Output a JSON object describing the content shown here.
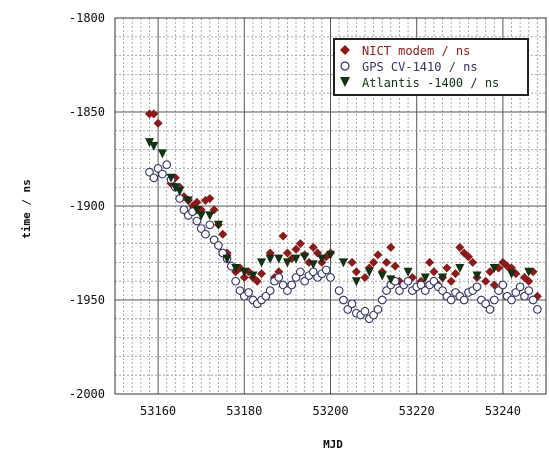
{
  "chart_data": {
    "type": "scatter",
    "xlabel": "MJD",
    "ylabel": "time / ns",
    "xlim": [
      53150,
      53250
    ],
    "ylim": [
      -2000,
      -1800
    ],
    "x_ticks": [
      "53160",
      "53180",
      "53200",
      "53220",
      "53240"
    ],
    "y_ticks": [
      "-1800",
      "-1850",
      "-1900",
      "-1950",
      "-2000"
    ],
    "grid": true,
    "legend_position": "top-right",
    "series": [
      {
        "name": "NICT modem / ns",
        "color": "#8b1a1a",
        "marker": "diamond",
        "points": [
          [
            53158,
            -1851
          ],
          [
            53159,
            -1851
          ],
          [
            53160,
            -1856
          ],
          [
            53163,
            -1888
          ],
          [
            53164,
            -1885
          ],
          [
            53165,
            -1890
          ],
          [
            53166,
            -1895
          ],
          [
            53167,
            -1897
          ],
          [
            53168,
            -1900
          ],
          [
            53169,
            -1898
          ],
          [
            53170,
            -1902
          ],
          [
            53171,
            -1897
          ],
          [
            53172,
            -1896
          ],
          [
            53173,
            -1902
          ],
          [
            53174,
            -1910
          ],
          [
            53175,
            -1915
          ],
          [
            53176,
            -1925
          ],
          [
            53177,
            -1932
          ],
          [
            53178,
            -1935
          ],
          [
            53179,
            -1933
          ],
          [
            53180,
            -1938
          ],
          [
            53181,
            -1935
          ],
          [
            53182,
            -1938
          ],
          [
            53183,
            -1940
          ],
          [
            53184,
            -1936
          ],
          [
            53186,
            -1925
          ],
          [
            53187,
            -1938
          ],
          [
            53188,
            -1935
          ],
          [
            53189,
            -1916
          ],
          [
            53190,
            -1925
          ],
          [
            53191,
            -1928
          ],
          [
            53192,
            -1923
          ],
          [
            53193,
            -1920
          ],
          [
            53194,
            -1926
          ],
          [
            53195,
            -1930
          ],
          [
            53196,
            -1922
          ],
          [
            53197,
            -1925
          ],
          [
            53198,
            -1930
          ],
          [
            53199,
            -1927
          ],
          [
            53200,
            -1925
          ],
          [
            53205,
            -1930
          ],
          [
            53206,
            -1935
          ],
          [
            53208,
            -1938
          ],
          [
            53209,
            -1933
          ],
          [
            53210,
            -1930
          ],
          [
            53211,
            -1926
          ],
          [
            53212,
            -1935
          ],
          [
            53213,
            -1930
          ],
          [
            53214,
            -1922
          ],
          [
            53215,
            -1932
          ],
          [
            53216,
            -1940
          ],
          [
            53219,
            -1938
          ],
          [
            53221,
            -1940
          ],
          [
            53223,
            -1930
          ],
          [
            53224,
            -1935
          ],
          [
            53225,
            -1942
          ],
          [
            53226,
            -1938
          ],
          [
            53227,
            -1933
          ],
          [
            53228,
            -1940
          ],
          [
            53229,
            -1936
          ],
          [
            53230,
            -1922
          ],
          [
            53231,
            -1925
          ],
          [
            53232,
            -1927
          ],
          [
            53233,
            -1930
          ],
          [
            53234,
            -1938
          ],
          [
            53236,
            -1940
          ],
          [
            53237,
            -1935
          ],
          [
            53238,
            -1942
          ],
          [
            53239,
            -1933
          ],
          [
            53240,
            -1930
          ],
          [
            53241,
            -1932
          ],
          [
            53242,
            -1933
          ],
          [
            53243,
            -1936
          ],
          [
            53245,
            -1938
          ],
          [
            53246,
            -1940
          ],
          [
            53247,
            -1935
          ],
          [
            53248,
            -1948
          ]
        ]
      },
      {
        "name": "GPS CV-1410 / ns",
        "color": "#333366",
        "marker": "circle",
        "points": [
          [
            53158,
            -1882
          ],
          [
            53159,
            -1885
          ],
          [
            53160,
            -1880
          ],
          [
            53161,
            -1883
          ],
          [
            53162,
            -1878
          ],
          [
            53163,
            -1886
          ],
          [
            53164,
            -1890
          ],
          [
            53165,
            -1896
          ],
          [
            53166,
            -1902
          ],
          [
            53167,
            -1905
          ],
          [
            53168,
            -1903
          ],
          [
            53169,
            -1908
          ],
          [
            53170,
            -1912
          ],
          [
            53171,
            -1915
          ],
          [
            53172,
            -1910
          ],
          [
            53173,
            -1918
          ],
          [
            53174,
            -1921
          ],
          [
            53175,
            -1925
          ],
          [
            53176,
            -1928
          ],
          [
            53177,
            -1932
          ],
          [
            53178,
            -1940
          ],
          [
            53179,
            -1945
          ],
          [
            53180,
            -1948
          ],
          [
            53181,
            -1946
          ],
          [
            53182,
            -1950
          ],
          [
            53183,
            -1952
          ],
          [
            53184,
            -1950
          ],
          [
            53185,
            -1948
          ],
          [
            53186,
            -1945
          ],
          [
            53187,
            -1940
          ],
          [
            53188,
            -1938
          ],
          [
            53189,
            -1942
          ],
          [
            53190,
            -1945
          ],
          [
            53191,
            -1942
          ],
          [
            53192,
            -1938
          ],
          [
            53193,
            -1935
          ],
          [
            53194,
            -1940
          ],
          [
            53195,
            -1937
          ],
          [
            53196,
            -1935
          ],
          [
            53197,
            -1938
          ],
          [
            53198,
            -1936
          ],
          [
            53199,
            -1934
          ],
          [
            53200,
            -1938
          ],
          [
            53202,
            -1945
          ],
          [
            53203,
            -1950
          ],
          [
            53204,
            -1955
          ],
          [
            53205,
            -1952
          ],
          [
            53206,
            -1957
          ],
          [
            53207,
            -1958
          ],
          [
            53208,
            -1956
          ],
          [
            53209,
            -1960
          ],
          [
            53210,
            -1958
          ],
          [
            53211,
            -1955
          ],
          [
            53212,
            -1950
          ],
          [
            53213,
            -1945
          ],
          [
            53214,
            -1942
          ],
          [
            53215,
            -1940
          ],
          [
            53216,
            -1945
          ],
          [
            53217,
            -1942
          ],
          [
            53218,
            -1940
          ],
          [
            53219,
            -1945
          ],
          [
            53220,
            -1943
          ],
          [
            53221,
            -1942
          ],
          [
            53222,
            -1945
          ],
          [
            53223,
            -1942
          ],
          [
            53224,
            -1940
          ],
          [
            53225,
            -1943
          ],
          [
            53226,
            -1945
          ],
          [
            53227,
            -1948
          ],
          [
            53228,
            -1950
          ],
          [
            53229,
            -1946
          ],
          [
            53230,
            -1948
          ],
          [
            53231,
            -1950
          ],
          [
            53232,
            -1946
          ],
          [
            53233,
            -1945
          ],
          [
            53234,
            -1943
          ],
          [
            53235,
            -1950
          ],
          [
            53236,
            -1952
          ],
          [
            53237,
            -1955
          ],
          [
            53238,
            -1950
          ],
          [
            53239,
            -1945
          ],
          [
            53240,
            -1942
          ],
          [
            53241,
            -1948
          ],
          [
            53242,
            -1950
          ],
          [
            53243,
            -1946
          ],
          [
            53244,
            -1943
          ],
          [
            53245,
            -1948
          ],
          [
            53246,
            -1945
          ],
          [
            53247,
            -1950
          ],
          [
            53248,
            -1955
          ]
        ]
      },
      {
        "name": "Atlantis -1400 / ns",
        "color": "#133113",
        "marker": "triangle-down",
        "points": [
          [
            53158,
            -1866
          ],
          [
            53159,
            -1868
          ],
          [
            53161,
            -1872
          ],
          [
            53163,
            -1885
          ],
          [
            53164,
            -1890
          ],
          [
            53165,
            -1892
          ],
          [
            53167,
            -1897
          ],
          [
            53169,
            -1902
          ],
          [
            53170,
            -1905
          ],
          [
            53172,
            -1905
          ],
          [
            53174,
            -1910
          ],
          [
            53176,
            -1928
          ],
          [
            53178,
            -1933
          ],
          [
            53180,
            -1935
          ],
          [
            53182,
            -1937
          ],
          [
            53184,
            -1930
          ],
          [
            53186,
            -1928
          ],
          [
            53188,
            -1928
          ],
          [
            53190,
            -1930
          ],
          [
            53192,
            -1928
          ],
          [
            53194,
            -1927
          ],
          [
            53196,
            -1931
          ],
          [
            53198,
            -1928
          ],
          [
            53200,
            -1926
          ],
          [
            53203,
            -1930
          ],
          [
            53206,
            -1940
          ],
          [
            53209,
            -1935
          ],
          [
            53212,
            -1937
          ],
          [
            53214,
            -1939
          ],
          [
            53218,
            -1935
          ],
          [
            53222,
            -1938
          ],
          [
            53226,
            -1938
          ],
          [
            53230,
            -1933
          ],
          [
            53234,
            -1937
          ],
          [
            53238,
            -1933
          ],
          [
            53242,
            -1936
          ],
          [
            53246,
            -1935
          ]
        ]
      }
    ]
  }
}
